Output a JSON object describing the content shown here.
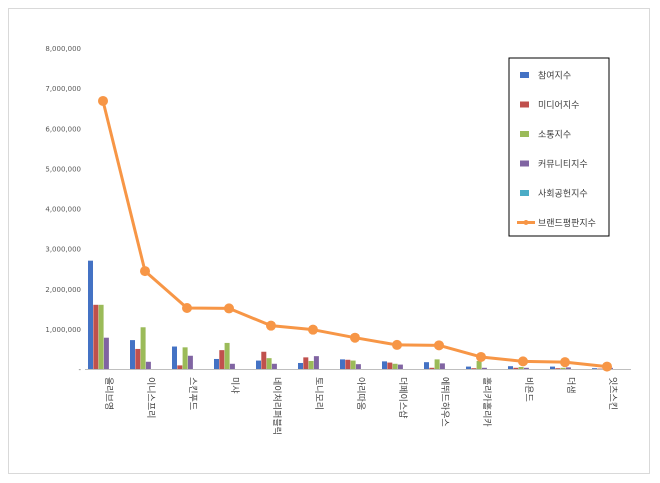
{
  "chart_data": {
    "type": "bar",
    "title": "",
    "xlabel": "",
    "ylabel": "",
    "ylim": [
      0,
      8000000
    ],
    "yticks": [
      0,
      1000000,
      2000000,
      3000000,
      4000000,
      5000000,
      6000000,
      7000000,
      8000000
    ],
    "ytick_labels": [
      "-",
      "1,000,000",
      "2,000,000",
      "3,000,000",
      "4,000,000",
      "5,000,000",
      "6,000,000",
      "7,000,000",
      "8,000,000"
    ],
    "grid": false,
    "legend_position": "top-right",
    "categories": [
      "올리브영",
      "이니스프리",
      "스킨푸드",
      "미샤",
      "네이처리퍼블릭",
      "토니모리",
      "아리따움",
      "더페이스샵",
      "에뛰드하우스",
      "홀리카홀리카",
      "비욘드",
      "더샘",
      "잇츠스킨"
    ],
    "series": [
      {
        "name": "참여지수",
        "type": "bar",
        "color": "#4472C4",
        "values": [
          2700000,
          720000,
          560000,
          250000,
          210000,
          150000,
          240000,
          190000,
          170000,
          60000,
          70000,
          60000,
          20000
        ]
      },
      {
        "name": "미디어지수",
        "type": "bar",
        "color": "#C0504D",
        "values": [
          1600000,
          500000,
          90000,
          470000,
          430000,
          290000,
          230000,
          160000,
          30000,
          20000,
          30000,
          20000,
          10000
        ]
      },
      {
        "name": "소통지수",
        "type": "bar",
        "color": "#9BBB59",
        "values": [
          1600000,
          1040000,
          540000,
          650000,
          270000,
          200000,
          210000,
          130000,
          240000,
          200000,
          50000,
          30000,
          10000
        ]
      },
      {
        "name": "커뮤니티지수",
        "type": "bar",
        "color": "#8064A2",
        "values": [
          780000,
          180000,
          330000,
          130000,
          130000,
          320000,
          120000,
          110000,
          140000,
          30000,
          30000,
          40000,
          30000
        ]
      },
      {
        "name": "사회공헌지수",
        "type": "bar",
        "color": "#4BACC6",
        "values": [
          0,
          0,
          0,
          0,
          0,
          0,
          0,
          0,
          0,
          0,
          0,
          0,
          0
        ]
      },
      {
        "name": "브랜드평판지수",
        "type": "line",
        "color": "#F79646",
        "values": [
          6680000,
          2440000,
          1520000,
          1510000,
          1080000,
          980000,
          780000,
          600000,
          590000,
          300000,
          190000,
          170000,
          60000
        ]
      }
    ]
  }
}
